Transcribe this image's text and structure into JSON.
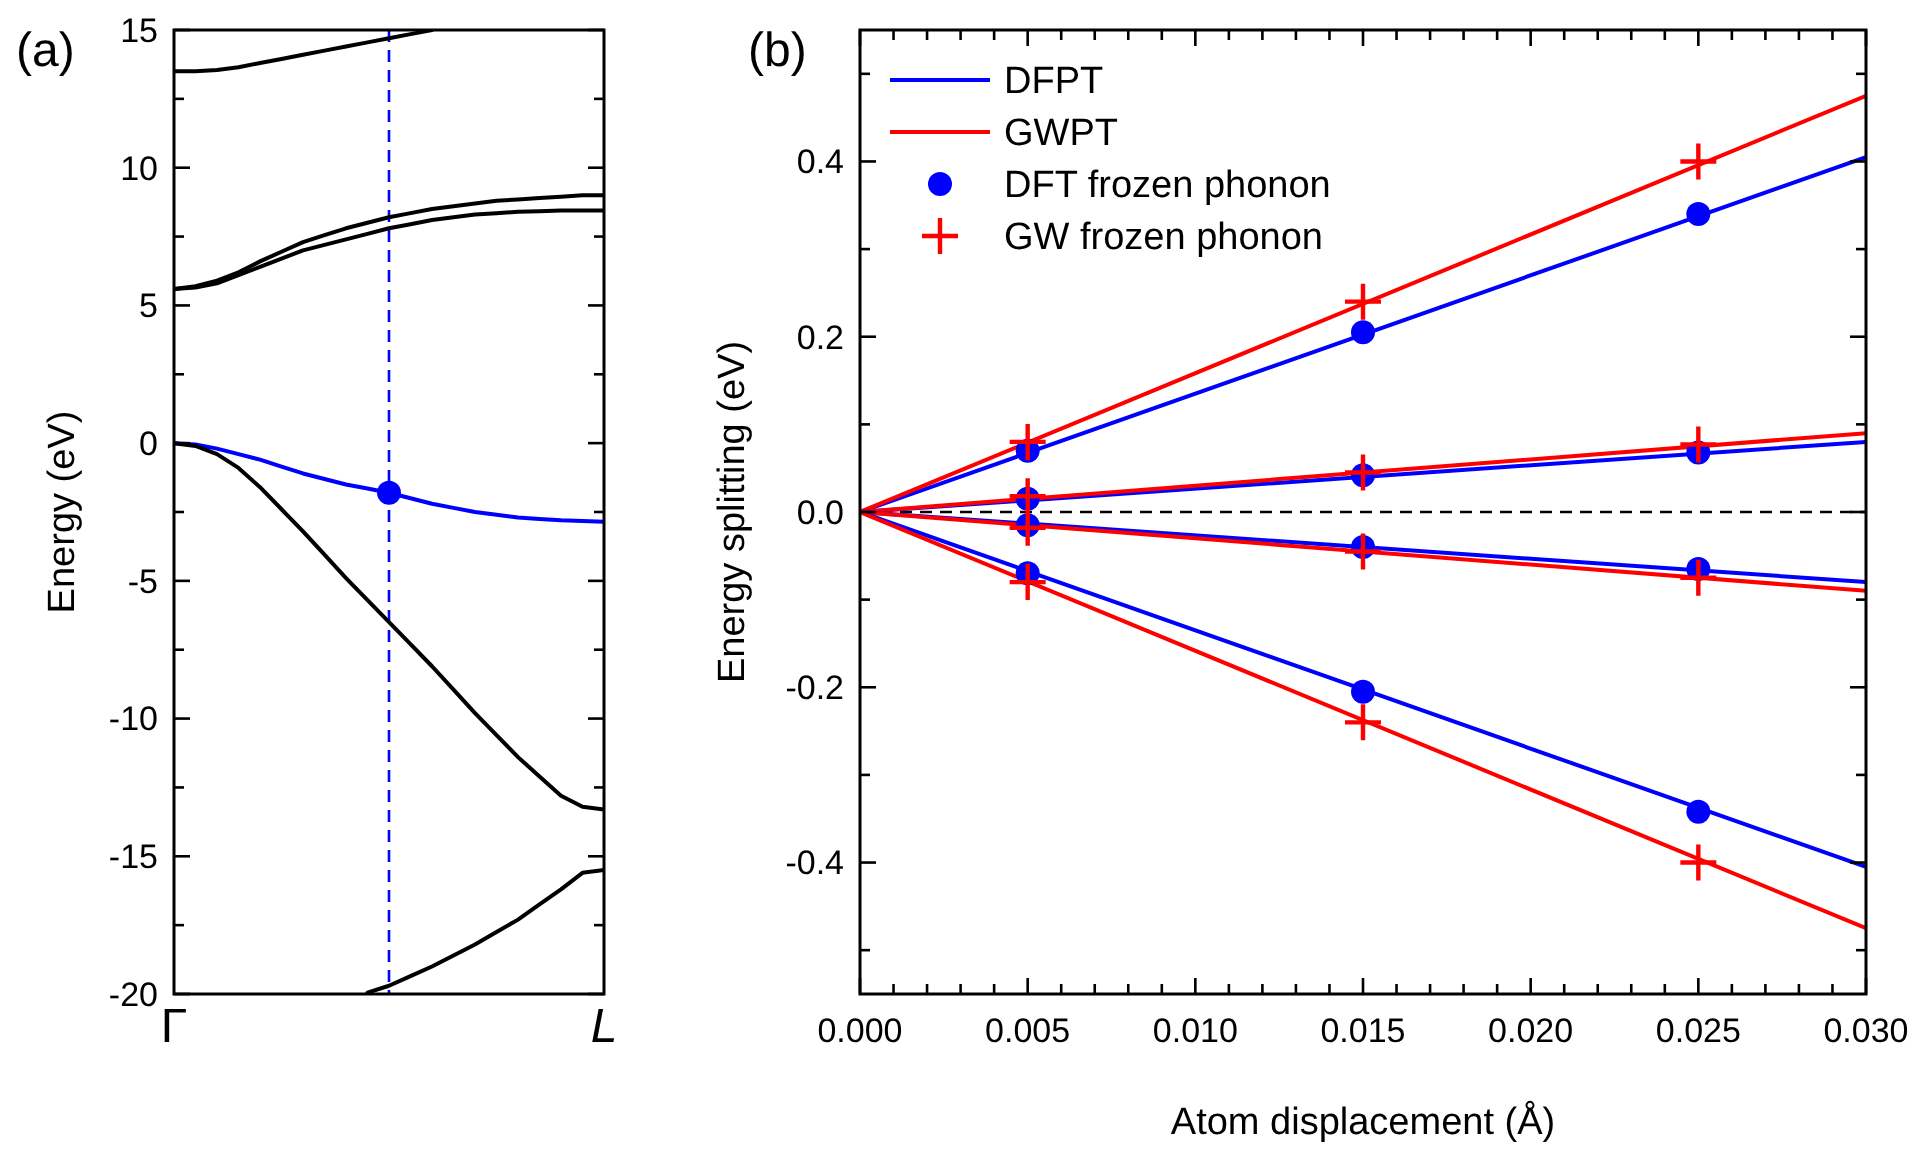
{
  "chart_data": [
    {
      "type": "line",
      "title": "(a)",
      "ylabel": "Energy (eV)",
      "categories": [
        "Γ",
        null,
        null,
        null,
        null,
        null,
        null,
        null,
        null,
        null,
        null,
        null,
        null,
        null,
        null,
        null,
        null,
        null,
        null,
        null,
        "L"
      ],
      "ylim": [
        -20,
        15
      ],
      "yticks": [
        -20,
        {
          "value": -17.5,
          "label": null
        },
        -15,
        {
          "value": -12.5,
          "label": null
        },
        -10,
        {
          "value": -7.5,
          "label": null
        },
        -5,
        {
          "value": -2.5,
          "label": null
        },
        0,
        {
          "value": 2.5,
          "label": null
        },
        5,
        {
          "value": 7.5,
          "label": null
        },
        10,
        {
          "value": 12.5,
          "label": null
        },
        15
      ],
      "grid": false,
      "legend": false,
      "line_style": "solid",
      "series": [
        {
          "color": "#000000",
          "values": [
            13.5,
            13.5,
            13.55,
            13.65,
            13.8,
            13.95,
            14.1,
            14.25,
            14.4,
            14.55,
            14.7,
            14.85,
            15.0,
            null,
            null,
            null,
            null,
            null,
            null,
            null,
            null
          ]
        },
        {
          "color": "#000000",
          "values": [
            5.6,
            5.7,
            5.9,
            6.2,
            6.6,
            6.95,
            7.3,
            7.55,
            7.8,
            8.0,
            8.2,
            8.35,
            8.5,
            8.6,
            8.7,
            8.8,
            8.85,
            8.9,
            8.95,
            9.0,
            9.0
          ]
        },
        {
          "color": "#000000",
          "values": [
            5.6,
            5.65,
            5.8,
            6.1,
            6.4,
            6.7,
            7.0,
            7.2,
            7.4,
            7.6,
            7.8,
            7.95,
            8.1,
            8.2,
            8.3,
            8.35,
            8.4,
            8.42,
            8.45,
            8.45,
            8.45
          ]
        },
        {
          "color": "#0000ff",
          "values": [
            0,
            -0.05,
            -0.2,
            -0.4,
            -0.6,
            -0.85,
            -1.1,
            -1.3,
            -1.5,
            -1.65,
            -1.8,
            -2.0,
            -2.2,
            -2.35,
            -2.5,
            -2.6,
            -2.7,
            -2.75,
            -2.8,
            -2.83,
            -2.85
          ]
        },
        {
          "color": "#000000",
          "values": [
            0,
            -0.1,
            -0.4,
            -0.9,
            -1.6,
            -2.4,
            -3.2,
            -4.05,
            -4.9,
            -5.7,
            -6.5,
            -7.3,
            -8.1,
            -8.95,
            -9.8,
            -10.6,
            -11.4,
            -12.1,
            -12.8,
            -13.2,
            -13.3
          ]
        },
        {
          "color": "#000000",
          "values": [
            null,
            null,
            null,
            null,
            null,
            null,
            null,
            null,
            null,
            -19.95,
            -19.7,
            -19.35,
            -19.0,
            -18.6,
            -18.2,
            -17.75,
            -17.3,
            -16.75,
            -16.2,
            -15.6,
            -15.5
          ]
        },
        {
          "type": "scatter",
          "marker": "circle",
          "color": "#0000ff",
          "values": [
            null,
            null,
            null,
            null,
            null,
            null,
            null,
            null,
            null,
            null,
            -1.8,
            null,
            null,
            null,
            null,
            null,
            null,
            null,
            null,
            null,
            null
          ]
        }
      ]
    },
    {
      "type": "line",
      "title": "(b)",
      "xlabel": "Atom displacement (Å)",
      "ylabel": "Energy splitting (eV)",
      "xlim": [
        0,
        0.03
      ],
      "ylim": [
        -0.55,
        0.55
      ],
      "grid": false,
      "legend": "top left",
      "line_style": "solid",
      "xticks": [
        {
          "value": 0,
          "label": "0.000"
        },
        {
          "value": 0.001,
          "label": null
        },
        {
          "value": 0.002,
          "label": null
        },
        {
          "value": 0.003,
          "label": null
        },
        {
          "value": 0.004,
          "label": null
        },
        {
          "value": 0.005,
          "label": "0.005"
        },
        {
          "value": 0.006,
          "label": null
        },
        {
          "value": 0.007,
          "label": null
        },
        {
          "value": 0.008,
          "label": null
        },
        {
          "value": 0.009,
          "label": null
        },
        {
          "value": 0.01,
          "label": "0.010"
        },
        {
          "value": 0.011,
          "label": null
        },
        {
          "value": 0.012,
          "label": null
        },
        {
          "value": 0.013,
          "label": null
        },
        {
          "value": 0.014,
          "label": null
        },
        {
          "value": 0.015,
          "label": "0.015"
        },
        {
          "value": 0.016,
          "label": null
        },
        {
          "value": 0.017,
          "label": null
        },
        {
          "value": 0.018,
          "label": null
        },
        {
          "value": 0.019,
          "label": null
        },
        {
          "value": 0.02,
          "label": "0.020"
        },
        {
          "value": 0.021,
          "label": null
        },
        {
          "value": 0.022,
          "label": null
        },
        {
          "value": 0.023,
          "label": null
        },
        {
          "value": 0.024,
          "label": null
        },
        {
          "value": 0.025,
          "label": "0.025"
        },
        {
          "value": 0.026,
          "label": null
        },
        {
          "value": 0.027,
          "label": null
        },
        {
          "value": 0.028,
          "label": null
        },
        {
          "value": 0.029,
          "label": null
        },
        {
          "value": 0.03,
          "label": "0.030"
        }
      ],
      "yticks": [
        {
          "value": -0.5,
          "label": null
        },
        -0.4,
        {
          "value": -0.3,
          "label": null
        },
        -0.2,
        {
          "value": -0.1,
          "label": null
        },
        {
          "value": 0,
          "label": "0.0"
        },
        {
          "value": 0.1,
          "label": null
        },
        0.2,
        {
          "value": 0.3,
          "label": null
        },
        0.4,
        {
          "value": 0.5,
          "label": null
        }
      ],
      "ref_lines": [
        {
          "axis": "y",
          "value": 0,
          "label": null,
          "color": "#000000",
          "line_style": "dashed"
        }
      ],
      "series": [
        {
          "name": "DFPT",
          "color": "#0000ff",
          "x": [
            0,
            0.03
          ],
          "values": [
            0,
            0.405
          ]
        },
        {
          "name": "GWPT",
          "color": "#ff0000",
          "x": [
            0,
            0.03
          ],
          "values": [
            0,
            0.475
          ]
        },
        {
          "name": "DFT frozen phonon",
          "type": "scatter",
          "marker": "circle",
          "color": "#0000ff",
          "x": [
            0.005,
            0.015,
            0.025,
            0.005,
            0.015,
            0.025,
            0.005,
            0.015,
            0.025,
            0.005,
            0.015,
            0.025
          ],
          "values": [
            0.07,
            0.205,
            0.34,
            0.015,
            0.042,
            0.068,
            -0.015,
            -0.04,
            -0.065,
            -0.07,
            -0.205,
            -0.342
          ]
        },
        {
          "name": "GW frozen phonon",
          "type": "scatter",
          "marker": "cross",
          "color": "#ff0000",
          "x": [
            0.005,
            0.015,
            0.025,
            0.005,
            0.015,
            0.025,
            0.005,
            0.015,
            0.025,
            0.005,
            0.015,
            0.025
          ],
          "values": [
            0.08,
            0.24,
            0.4,
            0.018,
            0.045,
            0.077,
            -0.018,
            -0.045,
            -0.075,
            -0.08,
            -0.24,
            -0.4
          ]
        },
        {
          "color": "#0000ff",
          "x": [
            0,
            0.03
          ],
          "values": [
            0,
            0.08
          ]
        },
        {
          "color": "#ff0000",
          "x": [
            0,
            0.03
          ],
          "values": [
            0,
            0.09
          ]
        },
        {
          "color": "#0000ff",
          "x": [
            0,
            0.03
          ],
          "values": [
            0,
            -0.08
          ]
        },
        {
          "color": "#ff0000",
          "x": [
            0,
            0.03
          ],
          "values": [
            0,
            -0.09
          ]
        },
        {
          "color": "#0000ff",
          "x": [
            0,
            0.03
          ],
          "values": [
            0,
            -0.405
          ]
        },
        {
          "color": "#ff0000",
          "x": [
            0,
            0.03
          ],
          "values": [
            0,
            -0.475
          ]
        }
      ]
    }
  ]
}
